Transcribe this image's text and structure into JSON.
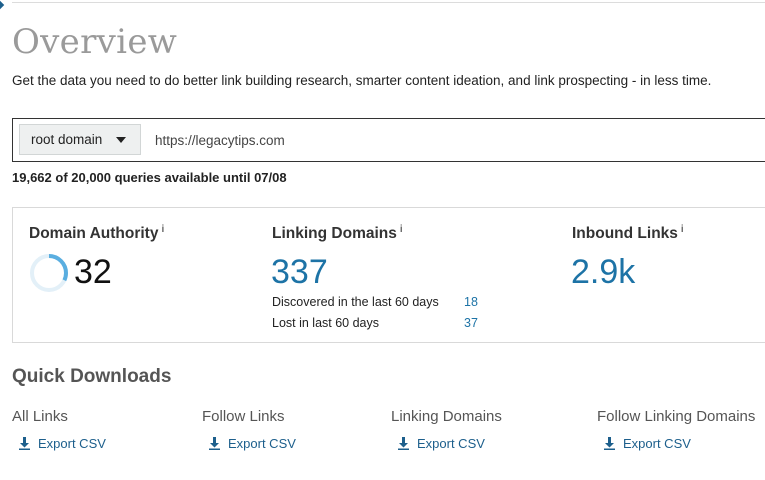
{
  "header": {
    "title": "Overview",
    "subtitle": "Get the data you need to do better link building research, smarter content ideation, and link prospecting - in less time."
  },
  "search": {
    "scope_selected": "root domain",
    "query": "https://legacytips.com"
  },
  "quota_text": "19,662 of 20,000 queries available until 07/08",
  "metrics": {
    "info_glyph": "i",
    "domain_authority": {
      "label": "Domain Authority",
      "value": "32",
      "ring_fraction": 0.32
    },
    "linking_domains": {
      "label": "Linking Domains",
      "value": "337",
      "discovered_label": "Discovered in the last 60 days",
      "discovered_value": "18",
      "lost_label": "Lost in last 60 days",
      "lost_value": "37"
    },
    "inbound_links": {
      "label": "Inbound Links",
      "value": "2.9k"
    }
  },
  "quick_downloads": {
    "title": "Quick Downloads",
    "items": [
      {
        "name": "All Links",
        "action": "Export CSV",
        "icon": "download-icon"
      },
      {
        "name": "Follow Links",
        "action": "Export CSV",
        "icon": "download-icon"
      },
      {
        "name": "Linking Domains",
        "action": "Export CSV",
        "icon": "download-icon"
      },
      {
        "name": "Follow Linking Domains",
        "action": "Export CSV",
        "icon": "download-icon"
      }
    ]
  },
  "colors": {
    "accent_blue": "#1d73a6",
    "link_blue": "#1d5f8c",
    "ring_progress": "#5aaee0",
    "ring_track": "#e3f0f8"
  }
}
